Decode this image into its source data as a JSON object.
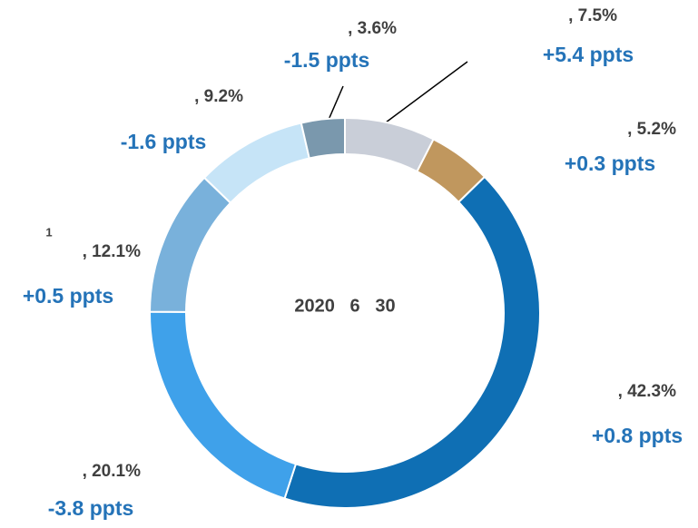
{
  "chart_data": {
    "type": "donut",
    "categories": [
      null,
      null,
      null,
      null,
      null,
      null,
      null
    ],
    "values": [
      7.5,
      5.2,
      42.3,
      20.1,
      12.1,
      9.2,
      3.6
    ],
    "value_labels": [
      ", 7.5%",
      ", 5.2%",
      ", 42.3%",
      ", 20.1%",
      ", 12.1%",
      ", 9.2%",
      ", 3.6%"
    ],
    "annotations": [
      "+5.4 ppts",
      "+0.3 ppts",
      "+0.8 ppts",
      "-3.8 ppts",
      "+0.5 ppts",
      "-1.6 ppts",
      "-1.5 ppts"
    ],
    "colors": [
      "#c9ced8",
      "#c0975e",
      "#0f6fb4",
      "#3fa1ea",
      "#79b1db",
      "#c6e4f7",
      "#7a98ad"
    ],
    "footnote": "1",
    "center_label": "2020   6   30"
  }
}
